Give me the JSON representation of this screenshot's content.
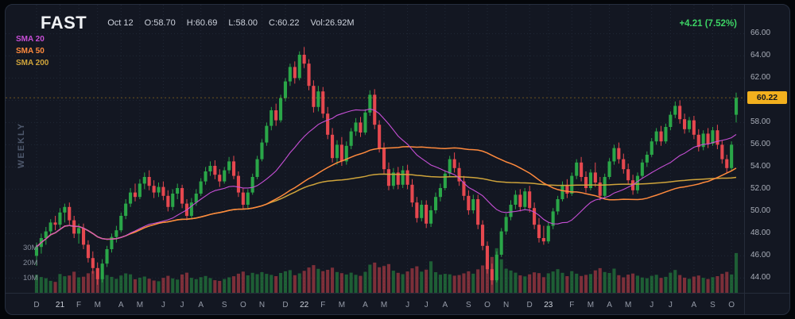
{
  "header": {
    "symbol": "FAST",
    "date": "Oct 12",
    "tokens": [
      "O:58.70",
      "H:60.69",
      "L:58.00",
      "C:60.22",
      "Vol:26.92M"
    ],
    "change": "+4.21 (7.52%)",
    "change_color": "#3dd465"
  },
  "legend": [
    {
      "label": "SMA 20",
      "period": 20,
      "color": "#c74fd6"
    },
    {
      "label": "SMA 50",
      "period": 50,
      "color": "#ff8a3d"
    },
    {
      "label": "SMA 200",
      "period": 200,
      "color": "#cfa43b"
    }
  ],
  "side_label": "WEEKLY",
  "chart_data": {
    "type": "candlestick",
    "symbol": "FAST",
    "timeframe": "weekly",
    "title": "FAST weekly candlestick chart with volume and SMA 20/50/200 overlays",
    "last": {
      "date": "Oct 12",
      "open": 58.7,
      "high": 60.69,
      "low": 58.0,
      "close": 60.22,
      "volume": "26.92M",
      "change": 4.21,
      "change_pct": 7.52
    },
    "last_price": 60.22,
    "last_price_label": "60.22",
    "price_axis": {
      "min": 42.6,
      "max": 68.6,
      "labels": [
        {
          "v": 66,
          "t": "66.00"
        },
        {
          "v": 64,
          "t": "64.00"
        },
        {
          "v": 62,
          "t": "62.00"
        },
        {
          "v": 60,
          "t": "60.00"
        },
        {
          "v": 58,
          "t": "58.00"
        },
        {
          "v": 56,
          "t": "56.00"
        },
        {
          "v": 54,
          "t": "54.00"
        },
        {
          "v": 52,
          "t": "52.00"
        },
        {
          "v": 50,
          "t": "50.00"
        },
        {
          "v": 48,
          "t": "48.00"
        },
        {
          "v": 46,
          "t": "46.00"
        },
        {
          "v": 44,
          "t": "44.00"
        }
      ]
    },
    "vol_labels": [
      {
        "v": 30,
        "t": "30M"
      },
      {
        "v": 20,
        "t": "20M"
      },
      {
        "v": 10,
        "t": "10M"
      }
    ],
    "x_ticks": [
      {
        "i": 0,
        "t": "D"
      },
      {
        "i": 5,
        "t": "21",
        "y": true
      },
      {
        "i": 9,
        "t": "F"
      },
      {
        "i": 13,
        "t": "M"
      },
      {
        "i": 18,
        "t": "A"
      },
      {
        "i": 22,
        "t": "M"
      },
      {
        "i": 27,
        "t": "J"
      },
      {
        "i": 31,
        "t": "J"
      },
      {
        "i": 35,
        "t": "A"
      },
      {
        "i": 40,
        "t": "S"
      },
      {
        "i": 44,
        "t": "O"
      },
      {
        "i": 48,
        "t": "N"
      },
      {
        "i": 53,
        "t": "D"
      },
      {
        "i": 57,
        "t": "22",
        "y": true
      },
      {
        "i": 61,
        "t": "F"
      },
      {
        "i": 65,
        "t": "M"
      },
      {
        "i": 70,
        "t": "A"
      },
      {
        "i": 74,
        "t": "M"
      },
      {
        "i": 79,
        "t": "J"
      },
      {
        "i": 83,
        "t": "J"
      },
      {
        "i": 87,
        "t": "A"
      },
      {
        "i": 92,
        "t": "S"
      },
      {
        "i": 96,
        "t": "O"
      },
      {
        "i": 100,
        "t": "N"
      },
      {
        "i": 105,
        "t": "D"
      },
      {
        "i": 109,
        "t": "23",
        "y": true
      },
      {
        "i": 114,
        "t": "F"
      },
      {
        "i": 118,
        "t": "M"
      },
      {
        "i": 122,
        "t": "A"
      },
      {
        "i": 126,
        "t": "M"
      },
      {
        "i": 131,
        "t": "J"
      },
      {
        "i": 135,
        "t": "J"
      },
      {
        "i": 140,
        "t": "A"
      },
      {
        "i": 144,
        "t": "S"
      },
      {
        "i": 148,
        "t": "O"
      }
    ],
    "colors": {
      "grid": "#212836",
      "up": "#2aa648",
      "down": "#e5484f",
      "vol_up": "rgba(42,166,72,0.5)",
      "vol_down": "rgba(229,72,79,0.5)",
      "badge": "#f2b01e"
    },
    "candles": [
      [
        46.0,
        47.2,
        45.1,
        46.8,
        12.5
      ],
      [
        46.8,
        48.0,
        46.2,
        47.6,
        11.0
      ],
      [
        47.6,
        48.6,
        47.0,
        48.2,
        10.2
      ],
      [
        48.2,
        49.3,
        47.8,
        49.0,
        8.5
      ],
      [
        49.0,
        49.6,
        48.3,
        48.8,
        7.8
      ],
      [
        48.8,
        50.3,
        48.5,
        49.9,
        13.0
      ],
      [
        49.9,
        50.7,
        49.0,
        50.4,
        11.5
      ],
      [
        50.4,
        50.8,
        48.8,
        49.2,
        12.0
      ],
      [
        49.2,
        49.6,
        47.6,
        48.0,
        14.5
      ],
      [
        48.0,
        48.9,
        47.1,
        48.5,
        10.8
      ],
      [
        48.5,
        48.9,
        46.6,
        47.0,
        11.2
      ],
      [
        47.0,
        47.4,
        45.4,
        45.8,
        13.5
      ],
      [
        45.8,
        46.4,
        44.4,
        44.9,
        15.0
      ],
      [
        44.9,
        45.4,
        43.4,
        43.9,
        16.8
      ],
      [
        43.9,
        45.7,
        43.6,
        45.3,
        14.0
      ],
      [
        45.3,
        46.9,
        45.0,
        46.6,
        12.3
      ],
      [
        46.6,
        48.0,
        46.3,
        47.7,
        11.1
      ],
      [
        47.7,
        48.7,
        47.2,
        48.3,
        9.8
      ],
      [
        48.3,
        49.9,
        48.1,
        49.6,
        12.0
      ],
      [
        49.6,
        51.1,
        49.3,
        50.7,
        13.4
      ],
      [
        50.7,
        52.1,
        50.4,
        51.7,
        12.8
      ],
      [
        51.7,
        52.5,
        50.9,
        51.3,
        9.5
      ],
      [
        51.3,
        52.9,
        51.1,
        52.5,
        10.6
      ],
      [
        52.5,
        53.5,
        52.0,
        53.1,
        11.3
      ],
      [
        53.1,
        53.7,
        51.9,
        52.3,
        9.9
      ],
      [
        52.3,
        52.8,
        51.2,
        51.7,
        8.7
      ],
      [
        51.7,
        52.6,
        51.3,
        52.2,
        8.2
      ],
      [
        52.2,
        52.7,
        51.0,
        51.4,
        10.4
      ],
      [
        51.4,
        51.9,
        50.0,
        50.4,
        11.8
      ],
      [
        50.4,
        52.0,
        50.1,
        51.6,
        10.1
      ],
      [
        51.6,
        52.5,
        51.1,
        52.1,
        9.3
      ],
      [
        52.1,
        52.4,
        50.3,
        50.7,
        12.7
      ],
      [
        50.7,
        51.1,
        49.2,
        49.6,
        13.9
      ],
      [
        49.6,
        51.2,
        49.4,
        50.8,
        10.5
      ],
      [
        50.8,
        52.0,
        50.5,
        51.6,
        9.6
      ],
      [
        51.6,
        53.0,
        51.4,
        52.7,
        10.9
      ],
      [
        52.7,
        54.0,
        52.4,
        53.6,
        11.7
      ],
      [
        53.6,
        54.5,
        53.2,
        54.1,
        10.3
      ],
      [
        54.1,
        54.6,
        52.9,
        53.3,
        8.9
      ],
      [
        53.3,
        53.8,
        52.2,
        52.7,
        8.4
      ],
      [
        52.7,
        54.0,
        52.5,
        53.7,
        9.7
      ],
      [
        53.7,
        54.9,
        53.4,
        54.5,
        10.8
      ],
      [
        54.5,
        55.0,
        52.9,
        53.2,
        11.5
      ],
      [
        53.2,
        53.6,
        51.3,
        51.7,
        13.2
      ],
      [
        51.7,
        52.1,
        50.2,
        50.6,
        14.6
      ],
      [
        50.6,
        52.0,
        50.3,
        51.7,
        12.1
      ],
      [
        51.7,
        53.4,
        51.5,
        53.1,
        13.8
      ],
      [
        53.1,
        55.0,
        52.9,
        54.7,
        12.9
      ],
      [
        54.7,
        56.5,
        54.5,
        56.2,
        14.2
      ],
      [
        56.2,
        58.0,
        55.9,
        57.7,
        13.1
      ],
      [
        57.7,
        59.4,
        57.3,
        59.1,
        12.4
      ],
      [
        59.1,
        59.7,
        57.7,
        58.2,
        11.6
      ],
      [
        58.2,
        60.5,
        58.0,
        60.2,
        13.7
      ],
      [
        60.2,
        62.0,
        59.9,
        61.7,
        14.8
      ],
      [
        61.7,
        63.3,
        61.3,
        63.0,
        15.6
      ],
      [
        63.0,
        63.5,
        61.5,
        62.0,
        12.2
      ],
      [
        62.0,
        64.4,
        61.8,
        64.1,
        13.4
      ],
      [
        64.1,
        64.8,
        62.9,
        63.3,
        15.1
      ],
      [
        63.3,
        63.7,
        60.9,
        61.3,
        17.3
      ],
      [
        61.3,
        61.8,
        58.9,
        59.4,
        18.9
      ],
      [
        59.4,
        61.3,
        59.0,
        60.8,
        16.4
      ],
      [
        60.8,
        61.2,
        58.4,
        58.8,
        14.9
      ],
      [
        58.8,
        59.4,
        56.5,
        56.9,
        15.8
      ],
      [
        56.9,
        57.5,
        54.4,
        54.8,
        17.2
      ],
      [
        54.8,
        56.4,
        54.2,
        56.0,
        14.3
      ],
      [
        56.0,
        56.7,
        54.1,
        54.5,
        13.6
      ],
      [
        54.5,
        56.3,
        54.2,
        55.9,
        12.7
      ],
      [
        55.9,
        57.5,
        55.6,
        57.2,
        13.9
      ],
      [
        57.2,
        58.4,
        56.8,
        58.0,
        12.5
      ],
      [
        58.0,
        58.5,
        56.7,
        57.1,
        11.8
      ],
      [
        57.1,
        59.2,
        56.9,
        58.9,
        14.4
      ],
      [
        58.9,
        60.9,
        58.6,
        60.5,
        19.2
      ],
      [
        60.5,
        61.0,
        57.4,
        57.8,
        20.6
      ],
      [
        57.8,
        58.2,
        55.3,
        55.7,
        17.5
      ],
      [
        55.7,
        56.2,
        53.4,
        53.8,
        18.3
      ],
      [
        53.8,
        54.4,
        51.9,
        52.3,
        19.6
      ],
      [
        52.3,
        53.9,
        52.0,
        53.5,
        15.2
      ],
      [
        53.5,
        54.0,
        52.0,
        52.4,
        13.8
      ],
      [
        52.4,
        54.1,
        52.1,
        53.7,
        12.9
      ],
      [
        53.7,
        54.2,
        52.0,
        52.4,
        14.7
      ],
      [
        52.4,
        52.9,
        50.4,
        50.8,
        16.8
      ],
      [
        50.8,
        51.3,
        49.0,
        49.4,
        18.1
      ],
      [
        49.4,
        51.0,
        49.1,
        50.6,
        14.6
      ],
      [
        50.6,
        51.0,
        48.5,
        48.9,
        15.9
      ],
      [
        48.9,
        50.5,
        48.6,
        50.1,
        21.4
      ],
      [
        50.1,
        51.7,
        49.8,
        51.3,
        14.2
      ],
      [
        51.3,
        52.5,
        50.9,
        52.1,
        12.6
      ],
      [
        52.1,
        53.7,
        51.9,
        53.4,
        13.1
      ],
      [
        53.4,
        55.0,
        53.1,
        54.7,
        12.8
      ],
      [
        54.7,
        55.3,
        53.5,
        53.9,
        11.9
      ],
      [
        53.9,
        54.4,
        52.3,
        52.7,
        12.3
      ],
      [
        52.7,
        53.2,
        51.0,
        51.4,
        13.4
      ],
      [
        51.4,
        51.9,
        49.7,
        50.1,
        14.8
      ],
      [
        50.1,
        51.5,
        49.8,
        51.1,
        13.2
      ],
      [
        51.1,
        51.5,
        48.4,
        48.8,
        16.1
      ],
      [
        48.8,
        49.2,
        46.5,
        46.9,
        18.7
      ],
      [
        46.9,
        47.3,
        44.4,
        44.8,
        20.9
      ],
      [
        44.8,
        45.3,
        43.4,
        43.8,
        24.3
      ],
      [
        43.8,
        46.4,
        43.6,
        46.1,
        30.1
      ],
      [
        46.1,
        48.5,
        45.9,
        48.2,
        22.8
      ],
      [
        48.2,
        49.8,
        47.9,
        49.5,
        16.5
      ],
      [
        49.5,
        51.0,
        49.2,
        50.6,
        15.3
      ],
      [
        50.6,
        51.9,
        50.2,
        51.5,
        13.9
      ],
      [
        51.5,
        52.0,
        50.0,
        50.4,
        12.1
      ],
      [
        50.4,
        52.1,
        50.1,
        51.8,
        11.4
      ],
      [
        51.8,
        52.3,
        49.9,
        50.3,
        12.8
      ],
      [
        50.3,
        50.8,
        48.4,
        48.8,
        14.1
      ],
      [
        48.8,
        49.4,
        47.2,
        47.6,
        13.6
      ],
      [
        47.6,
        48.7,
        47.0,
        47.3,
        10.9
      ],
      [
        47.3,
        49.0,
        47.1,
        48.7,
        13.5
      ],
      [
        48.7,
        50.3,
        48.4,
        50.0,
        14.7
      ],
      [
        50.0,
        51.4,
        49.7,
        51.1,
        16.2
      ],
      [
        51.1,
        52.7,
        50.9,
        52.4,
        13.8
      ],
      [
        52.4,
        52.9,
        51.2,
        51.6,
        11.6
      ],
      [
        51.6,
        53.5,
        51.4,
        53.2,
        14.9
      ],
      [
        53.2,
        54.7,
        52.9,
        54.4,
        13.2
      ],
      [
        54.4,
        54.9,
        52.7,
        53.1,
        11.7
      ],
      [
        53.1,
        53.6,
        51.7,
        52.1,
        12.4
      ],
      [
        52.1,
        53.8,
        51.9,
        53.5,
        13.0
      ],
      [
        53.5,
        54.4,
        52.2,
        52.6,
        15.4
      ],
      [
        52.6,
        53.1,
        51.0,
        51.4,
        16.9
      ],
      [
        51.4,
        53.4,
        51.1,
        53.1,
        14.3
      ],
      [
        53.1,
        54.8,
        52.9,
        54.5,
        13.7
      ],
      [
        54.5,
        56.0,
        54.2,
        55.7,
        16.6
      ],
      [
        55.7,
        56.2,
        54.3,
        54.7,
        12.2
      ],
      [
        54.7,
        55.2,
        53.4,
        53.8,
        10.8
      ],
      [
        53.8,
        54.3,
        52.4,
        52.8,
        12.6
      ],
      [
        52.8,
        53.3,
        51.5,
        51.9,
        13.3
      ],
      [
        51.9,
        53.5,
        51.6,
        53.2,
        11.9
      ],
      [
        53.2,
        54.7,
        53.0,
        54.4,
        10.7
      ],
      [
        54.4,
        55.4,
        54.0,
        55.1,
        10.2
      ],
      [
        55.1,
        56.6,
        54.9,
        56.3,
        11.8
      ],
      [
        56.3,
        57.5,
        56.0,
        57.2,
        12.5
      ],
      [
        57.2,
        57.7,
        55.9,
        56.3,
        10.4
      ],
      [
        56.3,
        57.9,
        56.1,
        57.6,
        11.1
      ],
      [
        57.6,
        59.0,
        57.3,
        58.7,
        13.9
      ],
      [
        58.7,
        59.9,
        58.4,
        59.5,
        15.7
      ],
      [
        59.5,
        60.0,
        57.9,
        58.3,
        12.3
      ],
      [
        58.3,
        58.8,
        57.0,
        57.4,
        10.6
      ],
      [
        57.4,
        58.5,
        57.1,
        58.2,
        9.8
      ],
      [
        58.2,
        58.6,
        56.5,
        56.9,
        11.3
      ],
      [
        56.9,
        57.4,
        55.4,
        55.8,
        12.0
      ],
      [
        55.8,
        57.3,
        55.5,
        57.0,
        10.5
      ],
      [
        57.0,
        57.5,
        55.7,
        56.1,
        9.7
      ],
      [
        56.1,
        57.6,
        55.9,
        57.3,
        10.9
      ],
      [
        57.3,
        57.8,
        55.6,
        56.0,
        11.6
      ],
      [
        56.0,
        56.4,
        54.3,
        54.7,
        13.1
      ],
      [
        54.7,
        55.1,
        53.5,
        53.9,
        14.4
      ],
      [
        53.9,
        56.3,
        53.7,
        56.01,
        12.7
      ],
      [
        58.7,
        60.69,
        58.0,
        60.22,
        26.92
      ]
    ]
  }
}
